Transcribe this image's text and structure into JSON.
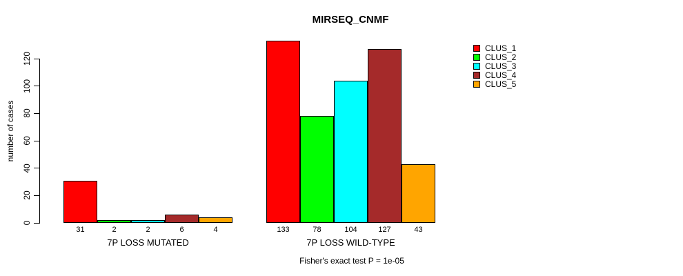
{
  "chart_data": {
    "type": "bar",
    "title": "MIRSEQ_CNMF",
    "ylabel": "number of cases",
    "ylim": [
      0,
      140
    ],
    "yticks": [
      0,
      20,
      40,
      60,
      80,
      100,
      120
    ],
    "grid": false,
    "legend_position": "right-outside",
    "groups": [
      {
        "label": "7P LOSS MUTATED",
        "values": [
          31,
          2,
          2,
          6,
          4
        ]
      },
      {
        "label": "7P LOSS WILD-TYPE",
        "values": [
          133,
          78,
          104,
          127,
          43
        ]
      }
    ],
    "series_names": [
      "CLUS_1",
      "CLUS_2",
      "CLUS_3",
      "CLUS_4",
      "CLUS_5"
    ],
    "colors": [
      "#FF0000",
      "#00FF00",
      "#00FFFF",
      "#A52A2A",
      "#FFA500"
    ],
    "footnote": "Fisher's exact test P = 1e-05"
  }
}
